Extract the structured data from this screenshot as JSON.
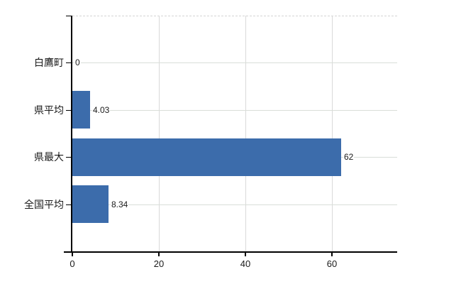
{
  "chart_data": {
    "type": "bar",
    "orientation": "horizontal",
    "title": "",
    "categories": [
      "白鷹町",
      "県平均",
      "県最大",
      "全国平均"
    ],
    "values": [
      0,
      4.03,
      62,
      8.34
    ],
    "value_labels": [
      "0",
      "4.03",
      "62",
      "8.34"
    ],
    "x_ticks": [
      0,
      20,
      40,
      60
    ],
    "x_tick_labels": [
      "0",
      "20",
      "40",
      "60"
    ],
    "xlim": [
      0,
      75
    ],
    "grid": "on",
    "legend": "none",
    "bar_color": "#3c6cab",
    "gridline_color": "#d9d9d9",
    "axis_color": "#000000",
    "text_color": "#1a1a1a",
    "background_color": "#ffffff"
  }
}
